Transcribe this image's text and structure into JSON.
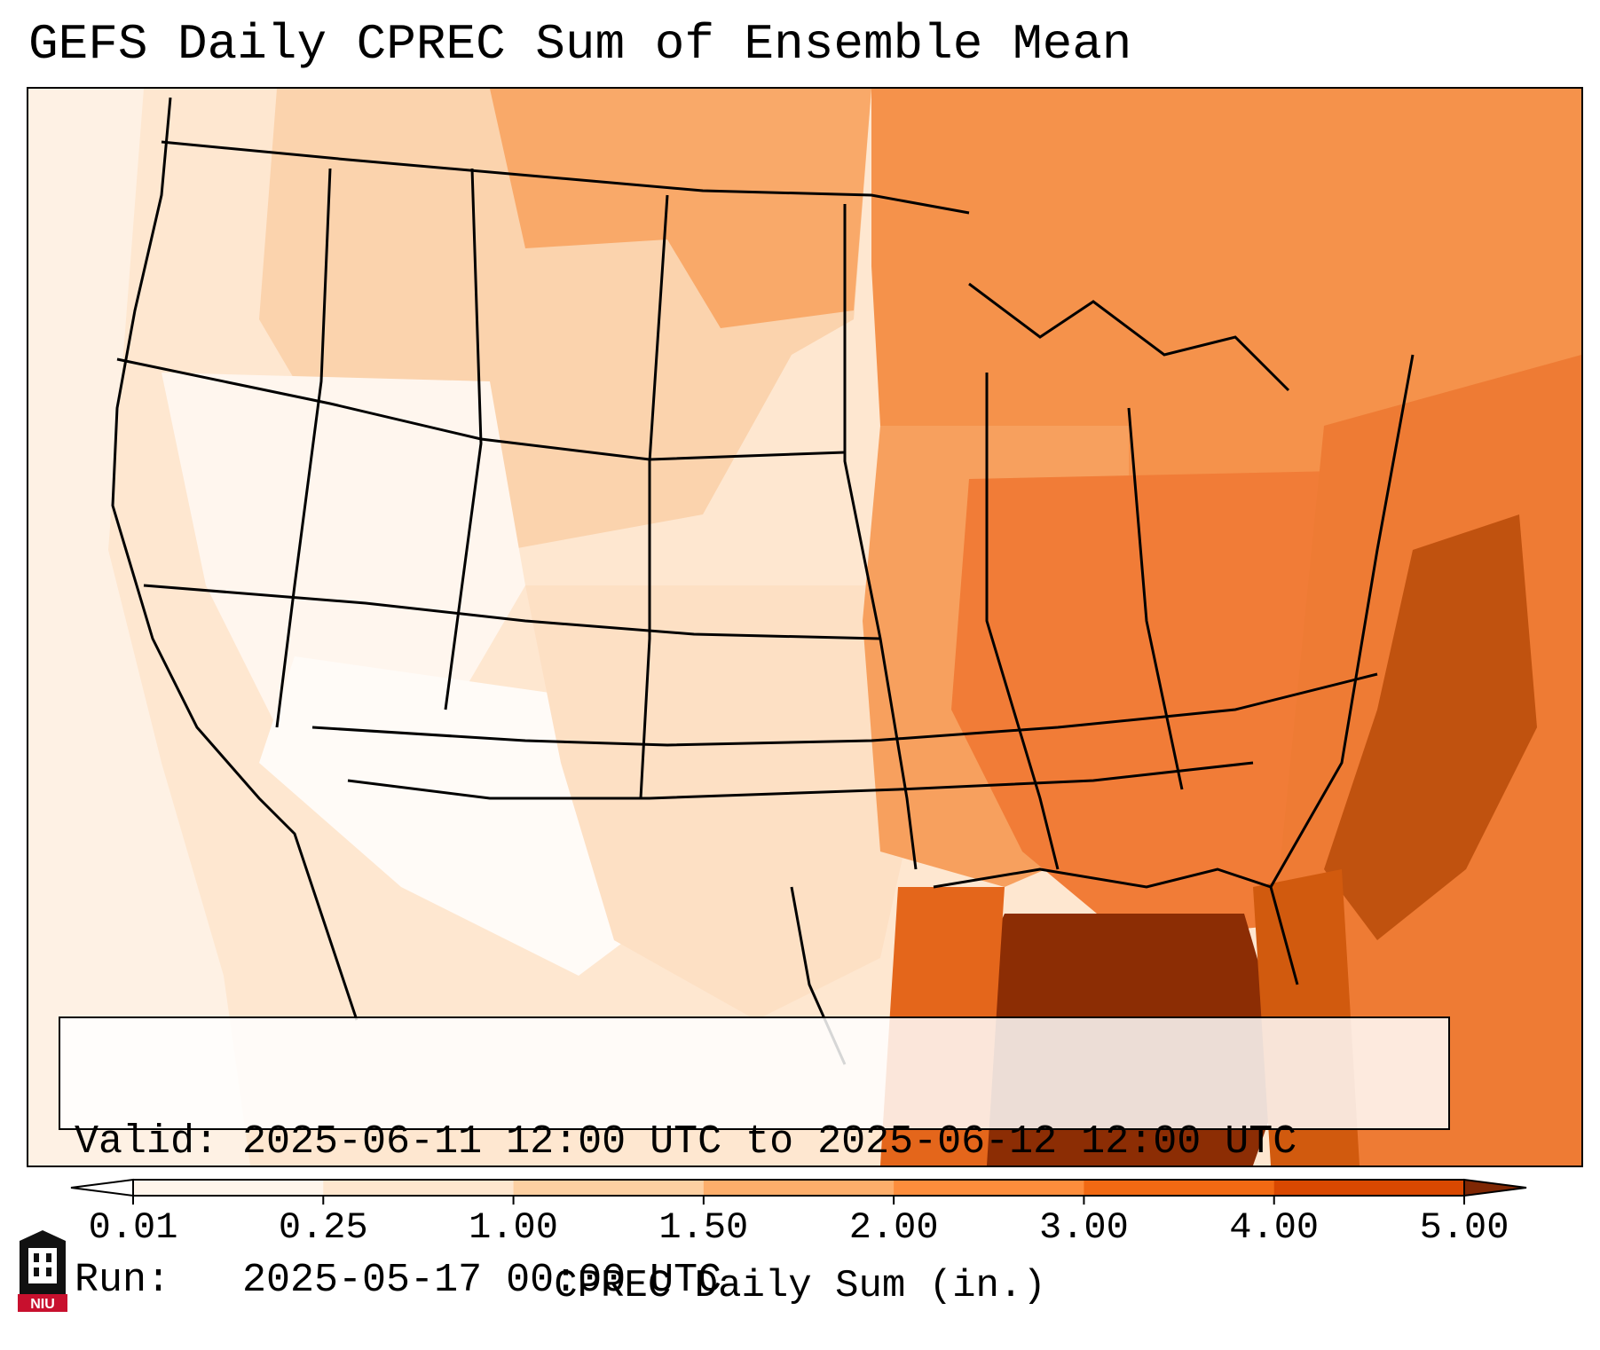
{
  "title": "GEFS Daily CPREC Sum of Ensemble Mean",
  "info": {
    "valid": "Valid: 2025-06-11 12:00 UTC to 2025-06-12 12:00 UTC",
    "run": "Run:   2025-05-17 00:00 UTC"
  },
  "colorbar": {
    "label": "CPREC Daily Sum (in.)",
    "ticks": [
      "0.01",
      "0.25",
      "1.00",
      "1.50",
      "2.00",
      "3.00",
      "4.00",
      "5.00"
    ],
    "colors": [
      "#fff5eb",
      "#fee6ce",
      "#fdd0a2",
      "#fdae6b",
      "#fd8d3c",
      "#f16913",
      "#d94801",
      "#8c2d04"
    ],
    "under_color": "#ffffff",
    "over_color": "#7f2704"
  },
  "logo": {
    "text": "NIU",
    "colors": {
      "red": "#c8102e",
      "black": "#111111"
    }
  },
  "map": {
    "colors": {
      "ocean_west": "#fef0e2",
      "west_land": "#fde9d6",
      "southwest": "#fff4ea",
      "plains": "#fdd7b0",
      "midwest": "#f7934f",
      "southeast": "#f07a32",
      "gulf_core": "#8c2d04",
      "atlantic": "#ef7d35",
      "atlantic_dark": "#b8480b",
      "boundaries": "#000000"
    }
  }
}
